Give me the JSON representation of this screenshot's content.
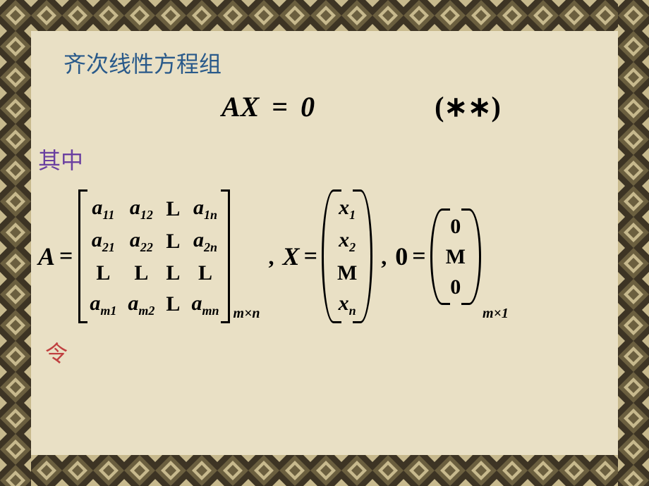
{
  "colors": {
    "parchment": "#e9e0c5",
    "border_dark": "#3d3424",
    "border_mid": "#6b5f3f",
    "border_light": "#c7b98d",
    "title": "#2a5a8a",
    "where": "#6a3fa0",
    "ling": "#c04040",
    "text": "#000000"
  },
  "title": "齐次线性方程组",
  "equation": {
    "lhs": "AX",
    "eq": "=",
    "rhs": "0",
    "tag": "(∗∗)"
  },
  "where_label": "其中",
  "ling_label": "令",
  "A": {
    "var": "A",
    "cells": [
      [
        "a",
        "11",
        "a",
        "12",
        "L",
        "a",
        "1n"
      ],
      [
        "a",
        "21",
        "a",
        "22",
        "L",
        "a",
        "2n"
      ],
      [
        "L",
        "",
        "L",
        "",
        "L",
        "L",
        ""
      ],
      [
        "a",
        "m1",
        "a",
        "m2",
        "L",
        "a",
        "mn"
      ]
    ],
    "dim": "m×n"
  },
  "X": {
    "var": "X",
    "cells": [
      "x_1",
      "x_2",
      "M",
      "x_n"
    ]
  },
  "Zero": {
    "var": "0",
    "cells": [
      "0",
      "M",
      "0"
    ],
    "dim": "m×1"
  }
}
